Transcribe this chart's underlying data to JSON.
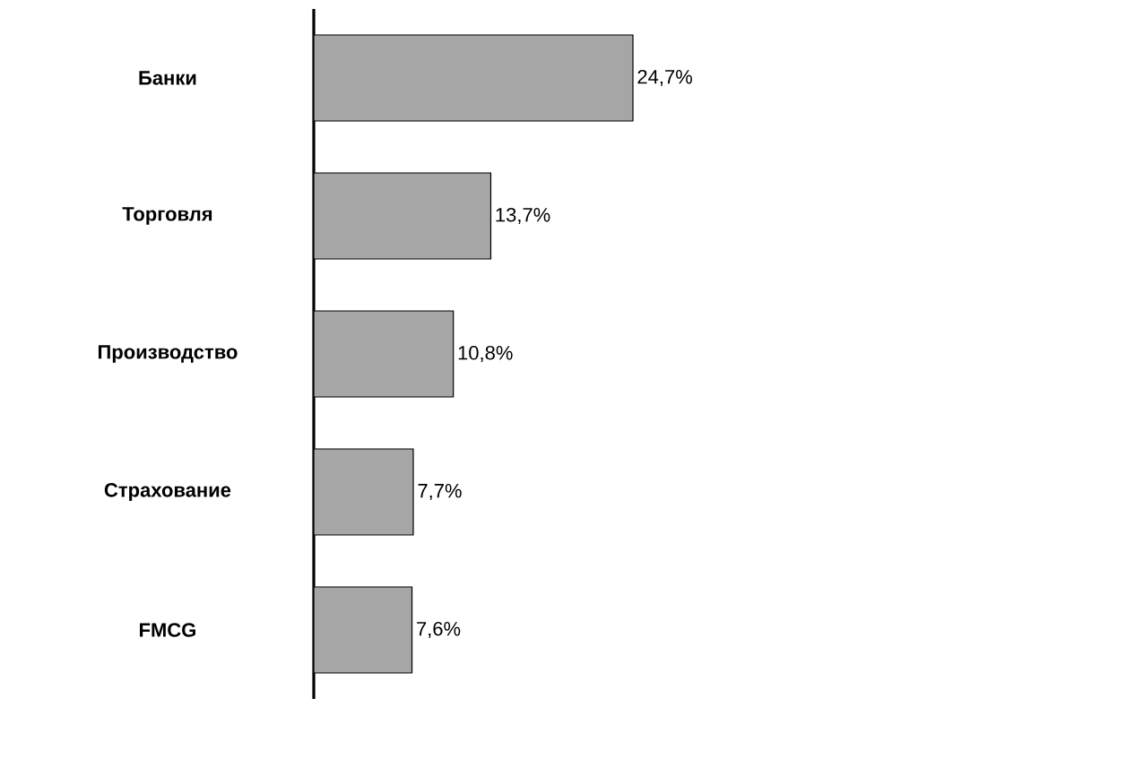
{
  "chart_data": {
    "type": "bar",
    "orientation": "horizontal",
    "categories": [
      "Банки",
      "Торговля",
      "Производство",
      "Страхование",
      "FMCG"
    ],
    "values": [
      24.7,
      13.7,
      10.8,
      7.7,
      7.6
    ],
    "value_labels": [
      "24,7%",
      "13,7%",
      "10,8%",
      "7,7%",
      "7,6%"
    ],
    "color": "#a6a6a6"
  }
}
